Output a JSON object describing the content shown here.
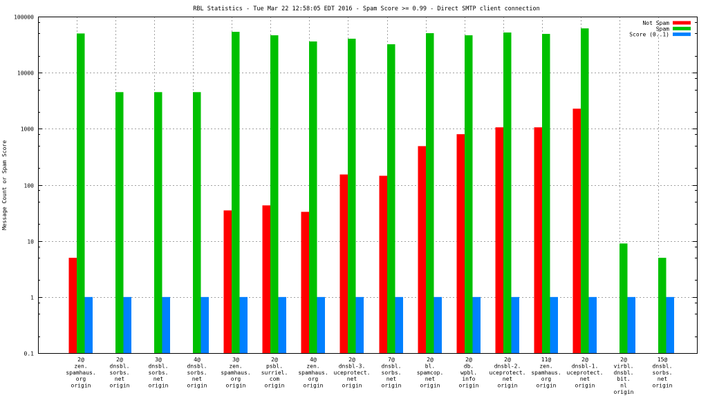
{
  "chart_data": {
    "type": "bar",
    "title": "RBL Statistics - Tue Mar 22 12:58:05 EDT 2016 - Spam Score >= 0.99 - Direct SMTP client connection",
    "xlabel": "",
    "ylabel": "Message Count or Spam Score",
    "yscale": "log",
    "ylim": [
      0.1,
      100000
    ],
    "yticks": [
      "0.1",
      "1",
      "10",
      "100",
      "1000",
      "10000",
      "100000"
    ],
    "grid": true,
    "legend_position": "top-right",
    "categories": [
      [
        "2@",
        "zen.",
        "spamhaus.",
        "org",
        "origin"
      ],
      [
        "2@",
        "dnsbl.",
        "sorbs.",
        "net",
        "origin"
      ],
      [
        "3@",
        "dnsbl.",
        "sorbs.",
        "net",
        "origin"
      ],
      [
        "4@",
        "dnsbl.",
        "sorbs.",
        "net",
        "origin"
      ],
      [
        "3@",
        "zen.",
        "spamhaus.",
        "org",
        "origin"
      ],
      [
        "2@",
        "psbl.",
        "surriel.",
        "com",
        "origin"
      ],
      [
        "4@",
        "zen.",
        "spamhaus.",
        "org",
        "origin"
      ],
      [
        "2@",
        "dnsbl-3.",
        "uceprotect.",
        "net",
        "origin"
      ],
      [
        "7@",
        "dnsbl.",
        "sorbs.",
        "net",
        "origin"
      ],
      [
        "2@",
        "bl.",
        "spamcop.",
        "net",
        "origin"
      ],
      [
        "2@",
        "db.",
        "wpbl.",
        "info",
        "origin"
      ],
      [
        "2@",
        "dnsbl-2.",
        "uceprotect.",
        "net",
        "origin"
      ],
      [
        "11@",
        "zen.",
        "spamhaus.",
        "org",
        "origin"
      ],
      [
        "2@",
        "dnsbl-1.",
        "uceprotect.",
        "net",
        "origin"
      ],
      [
        "2@",
        "virbl.",
        "dnsbl.",
        "bit.",
        "nl",
        "origin"
      ],
      [
        "15@",
        "dnsbl.",
        "sorbs.",
        "net",
        "origin"
      ]
    ],
    "series": [
      {
        "name": "Not Spam",
        "color": "#ff0000",
        "values": [
          5,
          null,
          null,
          null,
          35,
          43,
          33,
          153,
          145,
          490,
          800,
          1060,
          1060,
          2280,
          null,
          null
        ]
      },
      {
        "name": "Spam",
        "color": "#00c000",
        "values": [
          50000,
          4500,
          4500,
          4500,
          53500,
          46400,
          36000,
          40300,
          32100,
          50600,
          46400,
          52000,
          49100,
          61600,
          9,
          5
        ]
      },
      {
        "name": "Score (0..1)",
        "color": "#0080ff",
        "values": [
          1,
          1,
          1,
          1,
          1,
          1,
          1,
          1,
          1,
          1,
          1,
          1,
          1,
          1,
          1,
          1
        ]
      }
    ]
  }
}
